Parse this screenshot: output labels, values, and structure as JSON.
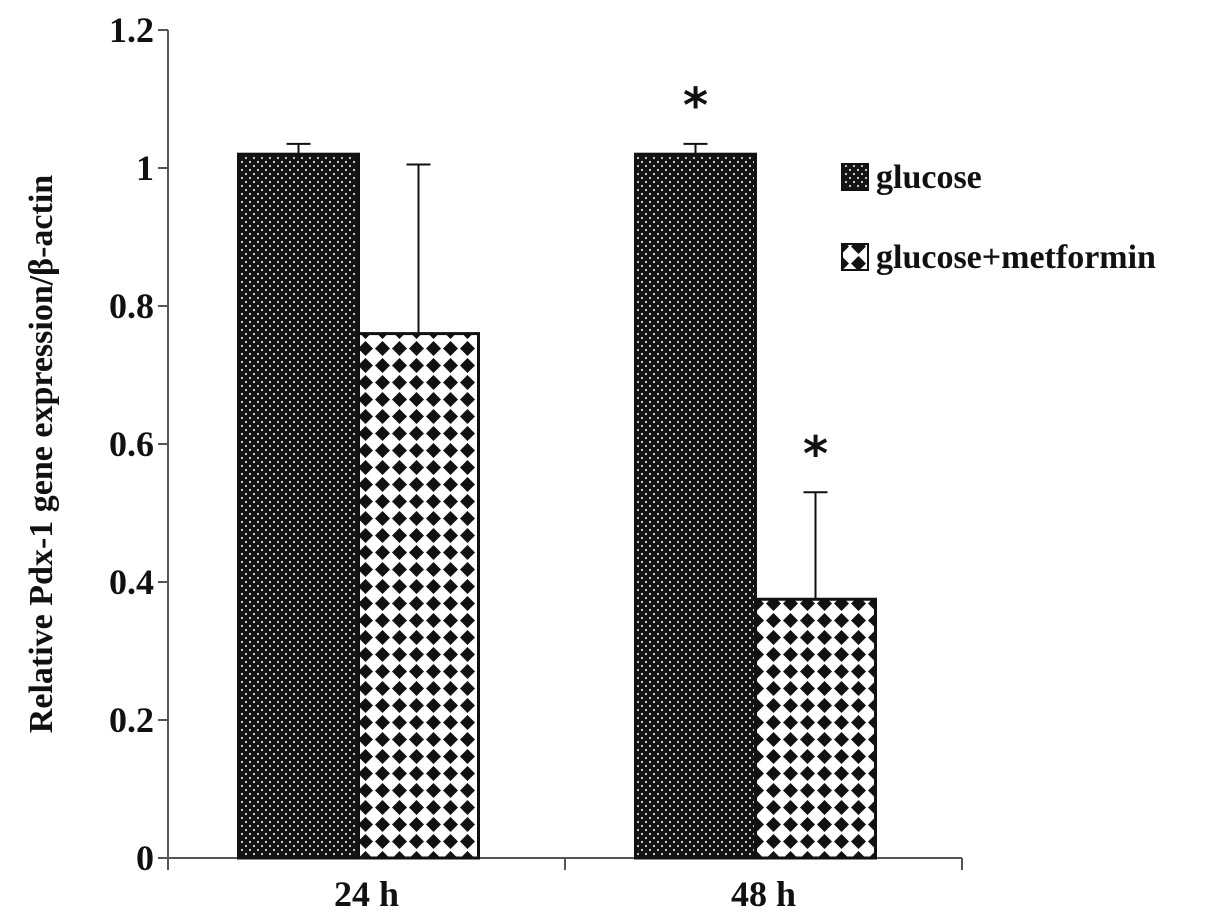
{
  "chart_data": {
    "type": "bar",
    "title": "",
    "xlabel": "",
    "ylabel": "Relative Pdx-1 gene expression/β-actin",
    "categories": [
      "24 h",
      "48 h"
    ],
    "series": [
      {
        "name": "glucose",
        "values": [
          1.02,
          1.02
        ],
        "errors": [
          0.015,
          0.015
        ],
        "significance": [
          "",
          "*"
        ],
        "pattern": "dots",
        "color": "#111111"
      },
      {
        "name": "glucose+metformin",
        "values": [
          0.76,
          0.375
        ],
        "errors": [
          0.245,
          0.155
        ],
        "significance": [
          "",
          "*"
        ],
        "pattern": "diamonds",
        "color": "#111111"
      }
    ],
    "ylim": [
      0,
      1.2
    ],
    "yticks": [
      0,
      0.2,
      0.4,
      0.6,
      0.8,
      1,
      1.2
    ],
    "ytick_labels": [
      "0",
      "0.2",
      "0.4",
      "0.6",
      "0.8",
      "1",
      "1.2"
    ],
    "grid": false,
    "legend_position": "top-right"
  }
}
